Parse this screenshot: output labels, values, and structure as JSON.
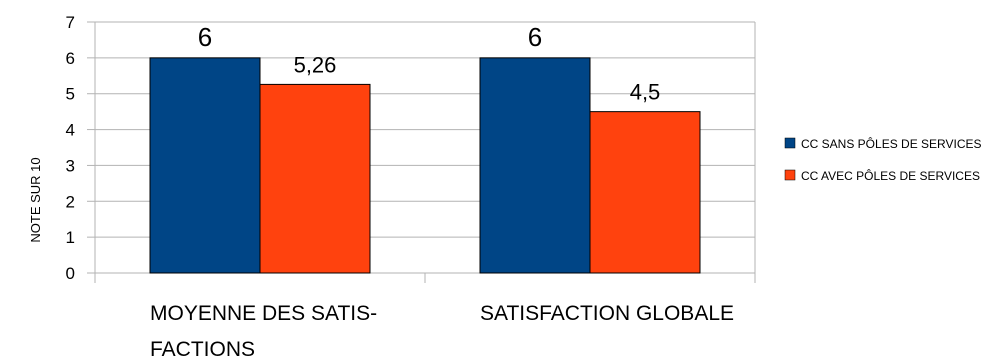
{
  "chart_data": {
    "type": "bar",
    "categories": [
      "MOYENNE DES SATIS-FACTIONS",
      "SATISFACTION GLOBALE"
    ],
    "category_lines": [
      [
        "MOYENNE DES SATIS-",
        "FACTIONS"
      ],
      [
        "SATISFACTION GLOBALE"
      ]
    ],
    "series": [
      {
        "name": "CC SANS PÔLES DE SERVICES",
        "values": [
          6,
          6
        ],
        "labels": [
          "6",
          "6"
        ],
        "color": "#004586"
      },
      {
        "name": "CC AVEC PÔLES DE SERVICES",
        "values": [
          5.26,
          4.5
        ],
        "labels": [
          "5,26",
          "4,5"
        ],
        "color": "#ff420e"
      }
    ],
    "ylabel": "NOTE SUR 10",
    "ylim": [
      0,
      7
    ],
    "yticks": [
      "0",
      "1",
      "2",
      "3",
      "4",
      "5",
      "6",
      "7"
    ],
    "grid": true,
    "legend_position": "right"
  }
}
